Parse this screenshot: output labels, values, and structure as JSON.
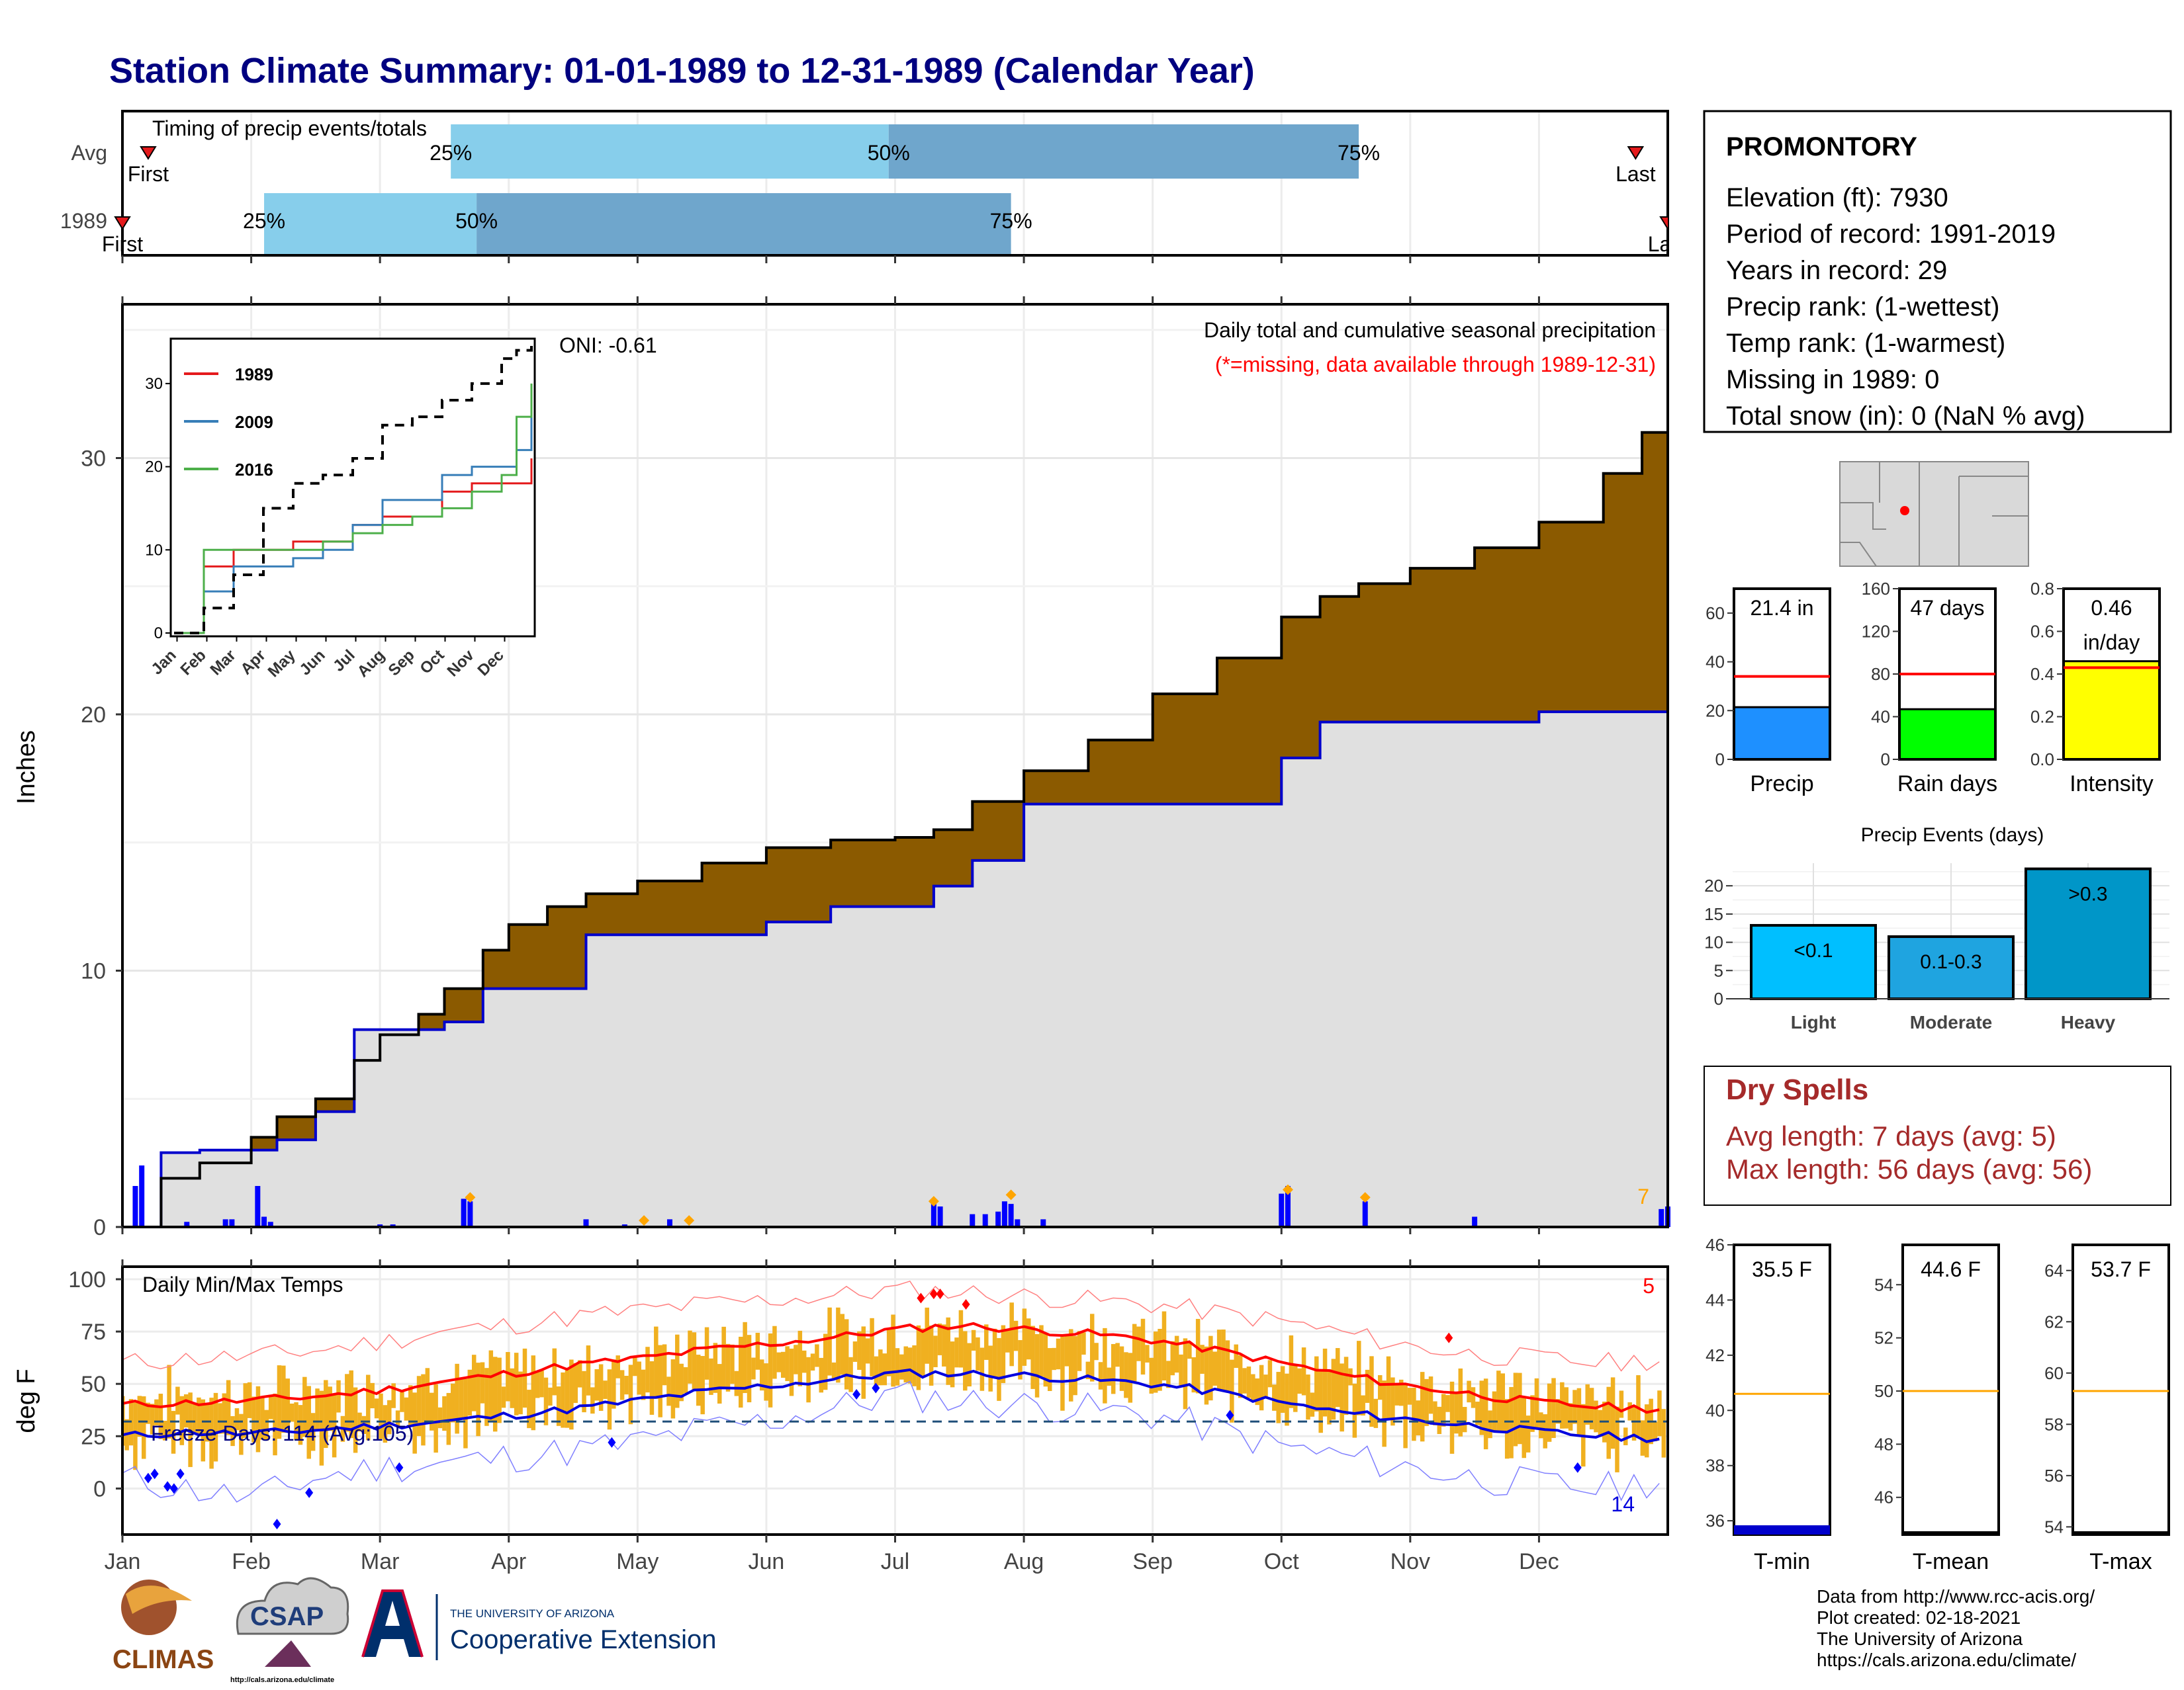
{
  "page": {
    "title": "Station Climate Summary: 01-01-1989 to 12-31-1989 (Calendar Year)"
  },
  "months": [
    "Jan",
    "Feb",
    "Mar",
    "Apr",
    "May",
    "Jun",
    "Jul",
    "Aug",
    "Sep",
    "Oct",
    "Nov",
    "Dec"
  ],
  "timing": {
    "title": "Timing of precip events/totals",
    "rows": [
      {
        "label": "Avg",
        "first": "First",
        "last": "Last",
        "q25": "25%",
        "q50": "50%",
        "q75": "75%",
        "first_month": 0.2,
        "q25_month": 2.55,
        "q50_month": 5.95,
        "q75_month": 9.6,
        "last_month": 11.75
      },
      {
        "label": "1989",
        "first": "First",
        "last": "Last",
        "q25": "25%",
        "q50": "50%",
        "q75": "75%",
        "first_month": 0.0,
        "q25_month": 1.1,
        "q50_month": 2.75,
        "q75_month": 6.9,
        "last_month": 12.0
      }
    ],
    "colors": {
      "light": "#87ceeb",
      "dark": "#6fa6cc"
    }
  },
  "precip": {
    "ylabel": "Inches",
    "annotation1": "Daily total and cumulative seasonal precipitation",
    "annotation2": "(*=missing, data available through 1989-12-31)",
    "corner_count": "7",
    "colors": {
      "above": "#8b5a00",
      "below": "#008000",
      "normal_fill": "#e0e0e0",
      "normal_line": "#0000cc",
      "cum_line": "#000000",
      "daily": "#0000ff",
      "marker": "#ffa500"
    }
  },
  "oni": "ONI: -0.61",
  "inset": {
    "legend": [
      {
        "name": "1989",
        "color": "#e41a1c"
      },
      {
        "name": "2009",
        "color": "#377eb8"
      },
      {
        "name": "2016",
        "color": "#4daf4a"
      }
    ],
    "average_color": "#000000"
  },
  "station": {
    "name": "PROMONTORY",
    "lines": [
      "Elevation (ft): 7930",
      "Period of record: 1991-2019",
      "Years in record: 29",
      "Precip rank:  (1-wettest)",
      "Temp rank:  (1-warmest)",
      "Missing in 1989: 0",
      "Total snow (in): 0 (NaN % avg)"
    ]
  },
  "mini_bars": [
    {
      "label": "Precip",
      "value_text": "21.4 in",
      "value": 21.4,
      "avg": 34,
      "color": "#1e90ff",
      "ymax": 70,
      "ticks": [
        0,
        20,
        40,
        60
      ]
    },
    {
      "label": "Rain days",
      "value_text": "47 days",
      "value": 47,
      "avg": 80,
      "color": "#00ff00",
      "ymax": 160,
      "ticks": [
        0,
        40,
        80,
        120,
        160
      ]
    },
    {
      "label": "Intensity",
      "value_text": "0.46\nin/day",
      "value": 0.46,
      "avg": 0.43,
      "color": "#ffff00",
      "ymax": 0.8,
      "ticks": [
        0.0,
        0.2,
        0.4,
        0.6,
        0.8
      ]
    }
  ],
  "events": {
    "title": "Precip Events (days)",
    "categories": [
      "Light",
      "Moderate",
      "Heavy"
    ],
    "labels": [
      "<0.1",
      "0.1-0.3",
      ">0.3"
    ],
    "values": [
      13,
      11,
      23
    ],
    "ticks": [
      0,
      5,
      10,
      15,
      20
    ],
    "colors": [
      "#00bfff",
      "#1fa4e0",
      "#0096c8"
    ]
  },
  "dry_spells": {
    "title": "Dry Spells",
    "avg_line": "Avg length: 7 days (avg: 5)",
    "max_line": "Max length: 56 days (avg: 56)",
    "color": "#a52a2a"
  },
  "temps": {
    "title": "Daily Min/Max Temps",
    "ylabel": "deg F",
    "freeze_text": "Freeze Days: 114 (Avg:105)",
    "corner_hot": "5",
    "corner_cold": "14",
    "ticks": [
      0,
      25,
      50,
      75,
      100
    ],
    "freeze_line": 32,
    "colors": {
      "bar": "#f0b020",
      "max": "#ff0000",
      "min": "#0000dd",
      "extreme_max": "#ff0000",
      "extreme_min": "#0000ff"
    }
  },
  "temp_summaries": [
    {
      "label": "T-min",
      "value_text": "35.5 F",
      "value": 35.5,
      "avg": 40.6,
      "ymin": 35.5,
      "ymax": 46,
      "ticks": [
        36,
        38,
        40,
        42,
        44,
        46
      ],
      "fill": "#0000cc"
    },
    {
      "label": "T-mean",
      "value_text": "44.6 F",
      "value": 44.6,
      "avg": 50,
      "ymin": 44.6,
      "ymax": 55.5,
      "ticks": [
        46,
        48,
        50,
        52,
        54
      ],
      "fill": "#000000"
    },
    {
      "label": "T-max",
      "value_text": "53.7 F",
      "value": 53.7,
      "avg": 59.3,
      "ymin": 53.7,
      "ymax": 65,
      "ticks": [
        54,
        56,
        58,
        60,
        62,
        64
      ],
      "fill": "#000000"
    }
  ],
  "footer": {
    "credits": [
      "Data from http://www.rcc-acis.org/",
      "Plot created: 02-18-2021",
      "The University of Arizona",
      "https://cals.arizona.edu/climate/"
    ],
    "logos": {
      "climas": "CLIMAS",
      "csap": "CSAP",
      "csap_url": "http://cals.arizona.edu/climate",
      "uofa_top": "THE UNIVERSITY OF ARIZONA",
      "uofa_bottom": "Cooperative Extension"
    }
  },
  "chart_data": [
    {
      "type": "area",
      "title": "Daily total and cumulative seasonal precipitation",
      "ylabel": "Inches",
      "x_unit": "month",
      "ylim": [
        0,
        36
      ],
      "x": [
        0,
        0.3,
        0.6,
        1.0,
        1.2,
        1.5,
        1.8,
        2.0,
        2.3,
        2.5,
        2.8,
        3.0,
        3.3,
        3.6,
        4.0,
        4.5,
        5.0,
        5.5,
        6.0,
        6.3,
        6.6,
        7.0,
        7.5,
        8.0,
        8.5,
        9.0,
        9.3,
        9.6,
        10.0,
        10.5,
        11.0,
        11.5,
        11.8,
        12.0
      ],
      "series": [
        {
          "name": "1989",
          "values": [
            0,
            2.9,
            3.0,
            3.0,
            3.4,
            4.5,
            7.7,
            7.7,
            7.7,
            8.0,
            9.3,
            9.3,
            9.3,
            11.4,
            11.4,
            11.4,
            11.9,
            12.5,
            12.5,
            13.3,
            14.3,
            16.5,
            16.5,
            16.5,
            16.5,
            18.3,
            19.7,
            19.7,
            19.7,
            19.7,
            20.1,
            20.1,
            20.1,
            21.4
          ]
        },
        {
          "name": "average",
          "values": [
            0,
            1.9,
            2.5,
            3.5,
            4.3,
            5.0,
            6.5,
            7.5,
            8.3,
            9.3,
            10.8,
            11.8,
            12.5,
            13.0,
            13.5,
            14.2,
            14.8,
            15.1,
            15.2,
            15.5,
            16.6,
            17.8,
            19.0,
            20.8,
            22.2,
            23.8,
            24.6,
            25.1,
            25.7,
            26.5,
            27.5,
            29.4,
            31.0,
            32.6
          ]
        }
      ]
    },
    {
      "type": "line",
      "title": "Daily Min/Max Temps",
      "ylabel": "deg F",
      "ylim": [
        -20,
        105
      ],
      "x_unit": "month",
      "x": [
        0,
        0.5,
        1,
        1.5,
        2,
        2.5,
        3,
        3.5,
        4,
        4.5,
        5,
        5.5,
        6,
        6.5,
        7,
        7.5,
        8,
        8.5,
        9,
        9.5,
        10,
        10.5,
        11,
        11.5,
        12
      ],
      "series": [
        {
          "name": "avg max",
          "values": [
            40,
            41,
            42,
            44,
            47,
            51,
            55,
            59,
            62,
            66,
            69,
            72,
            76,
            78,
            76,
            74,
            71,
            66,
            60,
            54,
            49,
            45,
            41,
            39,
            38
          ]
        },
        {
          "name": "avg min",
          "values": [
            25,
            27,
            26,
            28,
            30,
            32,
            35,
            38,
            42,
            46,
            49,
            52,
            55,
            55,
            54,
            52,
            50,
            46,
            41,
            36,
            33,
            30,
            27,
            25,
            24
          ]
        },
        {
          "name": "record max",
          "values": [
            60,
            62,
            63,
            66,
            70,
            75,
            78,
            82,
            85,
            88,
            90,
            92,
            95,
            94,
            92,
            90,
            88,
            84,
            80,
            74,
            68,
            64,
            62,
            60,
            62
          ]
        },
        {
          "name": "record min",
          "values": [
            5,
            0,
            -5,
            5,
            10,
            12,
            15,
            18,
            22,
            28,
            32,
            38,
            45,
            42,
            40,
            38,
            35,
            28,
            20,
            15,
            10,
            5,
            2,
            0,
            5
          ]
        }
      ]
    },
    {
      "type": "line",
      "title": "",
      "ylim": [
        0,
        35
      ],
      "x_unit": "month",
      "x": [
        0,
        1,
        2,
        3,
        4,
        5,
        6,
        7,
        8,
        9,
        10,
        11,
        11.5,
        12
      ],
      "series": [
        {
          "name": "1989",
          "values": [
            0,
            8,
            10,
            10,
            11,
            11,
            13,
            14,
            14,
            17,
            18,
            18,
            18,
            21
          ]
        },
        {
          "name": "2009",
          "values": [
            0,
            5,
            8,
            8,
            9,
            10,
            13,
            16,
            16,
            19,
            20,
            20,
            22,
            28
          ]
        },
        {
          "name": "2016",
          "values": [
            0,
            10,
            10,
            10,
            10,
            11,
            12,
            13,
            14,
            15,
            17,
            19,
            26,
            30
          ]
        },
        {
          "name": "average",
          "values": [
            0,
            3,
            7,
            15,
            18,
            19,
            21,
            25,
            26,
            28,
            30,
            33,
            34,
            35
          ]
        }
      ]
    },
    {
      "type": "bar",
      "title": "Precip Events (days)",
      "categories": [
        "Light",
        "Moderate",
        "Heavy"
      ],
      "values": [
        13,
        11,
        23
      ],
      "ylim": [
        0,
        25
      ]
    }
  ]
}
